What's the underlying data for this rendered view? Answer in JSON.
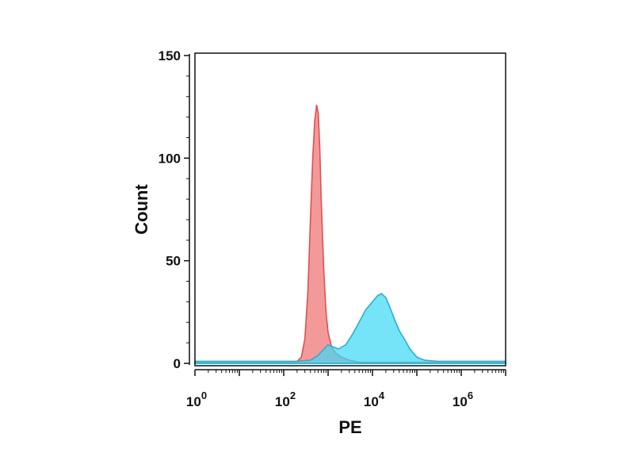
{
  "chart_data": {
    "type": "area",
    "xlabel": "PE",
    "ylabel": "Count",
    "x_scale": "log",
    "xlim": [
      1,
      10000000
    ],
    "ylim": [
      0,
      150
    ],
    "x_ticks": [
      {
        "value": 1,
        "base": "10",
        "exp": "0"
      },
      {
        "value": 100,
        "base": "10",
        "exp": "2"
      },
      {
        "value": 10000,
        "base": "10",
        "exp": "4"
      },
      {
        "value": 1000000,
        "base": "10",
        "exp": "6"
      }
    ],
    "y_ticks": [
      {
        "value": 0,
        "label": "0"
      },
      {
        "value": 50,
        "label": "50"
      },
      {
        "value": 100,
        "label": "100"
      },
      {
        "value": 150,
        "label": "150"
      }
    ],
    "grid": false,
    "series": [
      {
        "color": "#f08080",
        "stroke": "#e05050",
        "opacity": 0.8,
        "points": [
          [
            1,
            0.5
          ],
          [
            150,
            0.5
          ],
          [
            200,
            1
          ],
          [
            250,
            3
          ],
          [
            300,
            12
          ],
          [
            350,
            35
          ],
          [
            400,
            70
          ],
          [
            450,
            100
          ],
          [
            500,
            118
          ],
          [
            550,
            126
          ],
          [
            600,
            122
          ],
          [
            650,
            105
          ],
          [
            700,
            80
          ],
          [
            800,
            45
          ],
          [
            900,
            25
          ],
          [
            1000,
            15
          ],
          [
            1200,
            8
          ],
          [
            1500,
            5
          ],
          [
            2000,
            3
          ],
          [
            3000,
            1.5
          ],
          [
            5000,
            0.5
          ],
          [
            10000000,
            0.5
          ]
        ]
      },
      {
        "color": "#40d8f5",
        "stroke": "#18b8da",
        "opacity": 0.72,
        "points": [
          [
            1,
            1
          ],
          [
            200,
            1
          ],
          [
            400,
            1.5
          ],
          [
            600,
            4
          ],
          [
            800,
            7
          ],
          [
            1000,
            9
          ],
          [
            1300,
            8
          ],
          [
            1700,
            7
          ],
          [
            2500,
            9
          ],
          [
            3500,
            14
          ],
          [
            5000,
            20
          ],
          [
            7000,
            26
          ],
          [
            10000,
            30
          ],
          [
            13000,
            33
          ],
          [
            16000,
            34
          ],
          [
            20000,
            32
          ],
          [
            25000,
            27
          ],
          [
            32000,
            21
          ],
          [
            40000,
            16
          ],
          [
            55000,
            11
          ],
          [
            70000,
            7
          ],
          [
            100000,
            3
          ],
          [
            150000,
            1.5
          ],
          [
            300000,
            1
          ],
          [
            10000000,
            1
          ]
        ]
      }
    ]
  }
}
